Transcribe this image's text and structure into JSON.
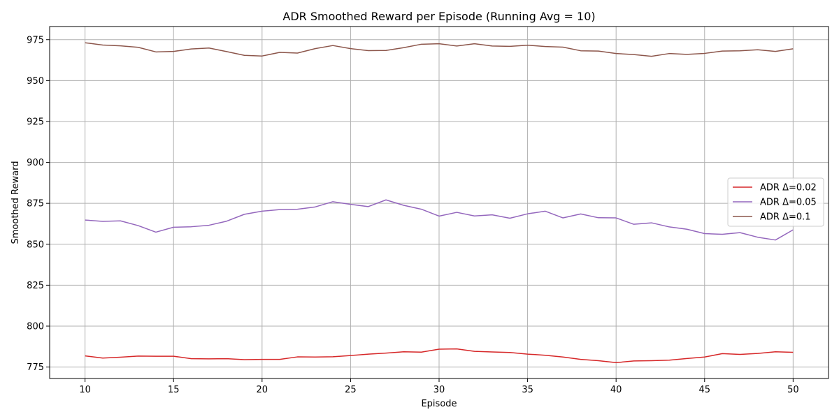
{
  "chart_data": {
    "type": "line",
    "title": "ADR Smoothed Reward per Episode (Running Avg = 10)",
    "xlabel": "Episode",
    "ylabel": "Smoothed Reward",
    "xlim": [
      8,
      52
    ],
    "ylim": [
      768,
      983
    ],
    "xticks": [
      10,
      15,
      20,
      25,
      30,
      35,
      40,
      45,
      50
    ],
    "yticks": [
      775,
      800,
      825,
      850,
      875,
      900,
      925,
      950,
      975
    ],
    "grid": true,
    "legend_position": "center-right",
    "x": [
      10,
      11,
      12,
      13,
      14,
      15,
      16,
      17,
      18,
      19,
      20,
      21,
      22,
      23,
      24,
      25,
      26,
      27,
      28,
      29,
      30,
      31,
      32,
      33,
      34,
      35,
      36,
      37,
      38,
      39,
      40,
      41,
      42,
      43,
      44,
      45,
      46,
      47,
      48,
      49,
      50
    ],
    "series": [
      {
        "name": "ADR Δ=0.02",
        "color": "#d62728",
        "values": [
          781.8,
          780.5,
          781.0,
          781.7,
          781.6,
          781.6,
          780.1,
          780.0,
          780.1,
          779.5,
          779.7,
          779.7,
          781.2,
          781.1,
          781.3,
          782.0,
          782.9,
          783.5,
          784.3,
          784.1,
          785.9,
          786.1,
          784.6,
          784.2,
          783.9,
          782.9,
          782.2,
          781.1,
          779.7,
          778.9,
          777.7,
          778.7,
          778.9,
          779.2,
          780.2,
          781.1,
          783.2,
          782.7,
          783.3,
          784.3,
          784.0
        ]
      },
      {
        "name": "ADR Δ=0.05",
        "color": "#9467bd",
        "values": [
          864.8,
          864.0,
          864.3,
          861.4,
          857.4,
          860.4,
          860.7,
          861.6,
          864.1,
          868.3,
          870.2,
          871.2,
          871.4,
          872.8,
          876.0,
          874.4,
          873.0,
          877.1,
          873.8,
          871.4,
          867.2,
          869.5,
          867.3,
          868.0,
          865.9,
          868.6,
          870.2,
          866.1,
          868.5,
          866.2,
          866.1,
          862.2,
          863.1,
          860.6,
          859.2,
          856.5,
          856.1,
          857.1,
          854.3,
          852.6,
          858.8
        ]
      },
      {
        "name": "ADR Δ=0.1",
        "color": "#8c564b",
        "values": [
          973.1,
          971.7,
          971.2,
          970.3,
          967.5,
          967.8,
          969.3,
          969.9,
          967.7,
          965.4,
          965.0,
          967.2,
          966.8,
          969.5,
          971.4,
          969.5,
          968.3,
          968.4,
          970.1,
          972.2,
          972.5,
          971.1,
          972.5,
          971.1,
          970.9,
          971.6,
          970.8,
          970.4,
          968.2,
          968.0,
          966.5,
          965.9,
          964.8,
          966.5,
          966.0,
          966.6,
          968.0,
          968.2,
          968.8,
          967.8,
          969.4
        ]
      }
    ]
  }
}
